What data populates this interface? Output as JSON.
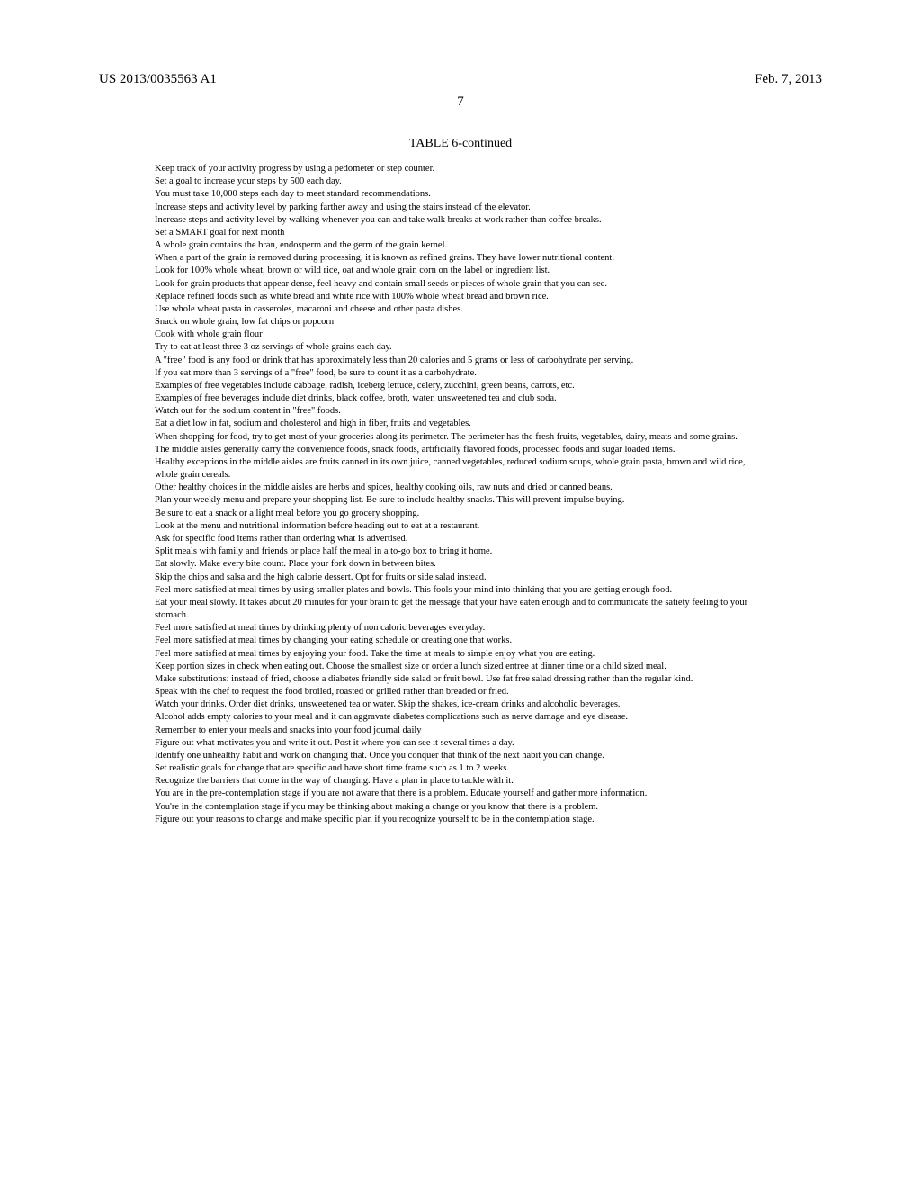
{
  "header": {
    "left": "US 2013/0035563 A1",
    "right": "Feb. 7, 2013"
  },
  "page_number": "7",
  "table": {
    "caption": "TABLE 6-continued",
    "lines": [
      "Keep track of your activity progress by using a pedometer or step counter.",
      "Set a goal to increase your steps by 500 each day.",
      "You must take 10,000 steps each day to meet standard recommendations.",
      "Increase steps and activity level by parking farther away and using the stairs instead of the elevator.",
      "Increase steps and activity level by walking whenever you can and take walk breaks at work rather than coffee breaks.",
      "Set a SMART goal for next month",
      "A whole grain contains the bran, endosperm and the germ of the grain kernel.",
      "When a part of the grain is removed during processing, it is known as refined grains. They have lower nutritional content.",
      "Look for 100% whole wheat, brown or wild rice, oat and whole grain corn on the label or ingredient list.",
      "Look for grain products that appear dense, feel heavy and contain small seeds or pieces of whole grain that you can see.",
      "Replace refined foods such as white bread and white rice with 100% whole wheat bread and brown rice.",
      "Use whole wheat pasta in casseroles, macaroni and cheese and other pasta dishes.",
      "Snack on whole grain, low fat chips or popcorn",
      "Cook with whole grain flour",
      "Try to eat at least three 3 oz servings of whole grains each day.",
      "A \"free\" food is any food or drink that has approximately less than 20 calories and 5 grams or less of carbohydrate per serving.",
      "If you eat more than 3 servings of a \"free\" food, be sure to count it as a carbohydrate.",
      "Examples of free vegetables include cabbage, radish, iceberg lettuce, celery, zucchini, green beans, carrots, etc.",
      "Examples of free beverages include diet drinks, black coffee, broth, water, unsweetened tea and club soda.",
      "Watch out for the sodium content in \"free\" foods.",
      "Eat a diet low in fat, sodium and cholesterol and high in fiber, fruits and vegetables.",
      "When shopping for food, try to get most of your groceries along its perimeter. The perimeter has the fresh fruits, vegetables, dairy, meats and some grains.",
      "The middle aisles generally carry the convenience foods, snack foods, artificially flavored foods, processed foods and sugar loaded items.",
      "Healthy exceptions in the middle aisles are fruits canned in its own juice, canned vegetables, reduced sodium soups, whole grain pasta, brown and wild rice, whole grain cereals.",
      "Other healthy choices in the middle aisles are herbs and spices, healthy cooking oils, raw nuts and dried or canned beans.",
      "Plan your weekly menu and prepare your shopping list. Be sure to include healthy snacks. This will prevent impulse buying.",
      "Be sure to eat a snack or a light meal before you go grocery shopping.",
      "Look at the menu and nutritional information before heading out to eat at a restaurant.",
      "Ask for specific food items rather than ordering what is advertised.",
      "Split meals with family and friends or place half the meal in a to-go box to bring it home.",
      "Eat slowly. Make every bite count. Place your fork down in between bites.",
      "Skip the chips and salsa and the high calorie dessert. Opt for fruits or side salad instead.",
      "Feel more satisfied at meal times by using smaller plates and bowls. This fools your mind into thinking that you are getting enough food.",
      "Eat your meal slowly. It takes about 20 minutes for your brain to get the message that your have eaten enough and to communicate the satiety feeling to your stomach.",
      "Feel more satisfied at meal times by drinking plenty of non caloric beverages everyday.",
      "Feel more satisfied at meal times by changing your eating schedule or creating one that works.",
      "Feel more satisfied at meal times by enjoying your food. Take the time at meals to simple enjoy what you are eating.",
      "Keep portion sizes in check when eating out. Choose the smallest size or order a lunch sized entree at dinner time or a child sized meal.",
      "Make substitutions: instead of fried, choose a diabetes friendly side salad or fruit bowl. Use fat free salad dressing rather than the regular kind.",
      "Speak with the chef to request the food broiled, roasted or grilled rather than breaded or fried.",
      "Watch your drinks. Order diet drinks, unsweetened tea or water. Skip the shakes, ice-cream drinks and alcoholic beverages.",
      "Alcohol adds empty calories to your meal and it can aggravate diabetes complications such as nerve damage and eye disease.",
      "Remember to enter your meals and snacks into your food journal daily",
      "Figure out what motivates you and write it out. Post it where you can see it several times a day.",
      "Identify one unhealthy habit and work on changing that. Once you conquer that think of the next habit you can change.",
      "Set realistic goals for change that are specific and have short time frame such as 1 to 2 weeks.",
      "Recognize the barriers that come in the way of changing. Have a plan in place to tackle with it.",
      "You are in the pre-contemplation stage if you are not aware that there is a problem. Educate yourself and gather more information.",
      "You're in the contemplation stage if you may be thinking about making a change or you know that there is a problem.",
      "Figure out your reasons to change and make specific plan if you recognize yourself to be in the contemplation stage."
    ]
  }
}
